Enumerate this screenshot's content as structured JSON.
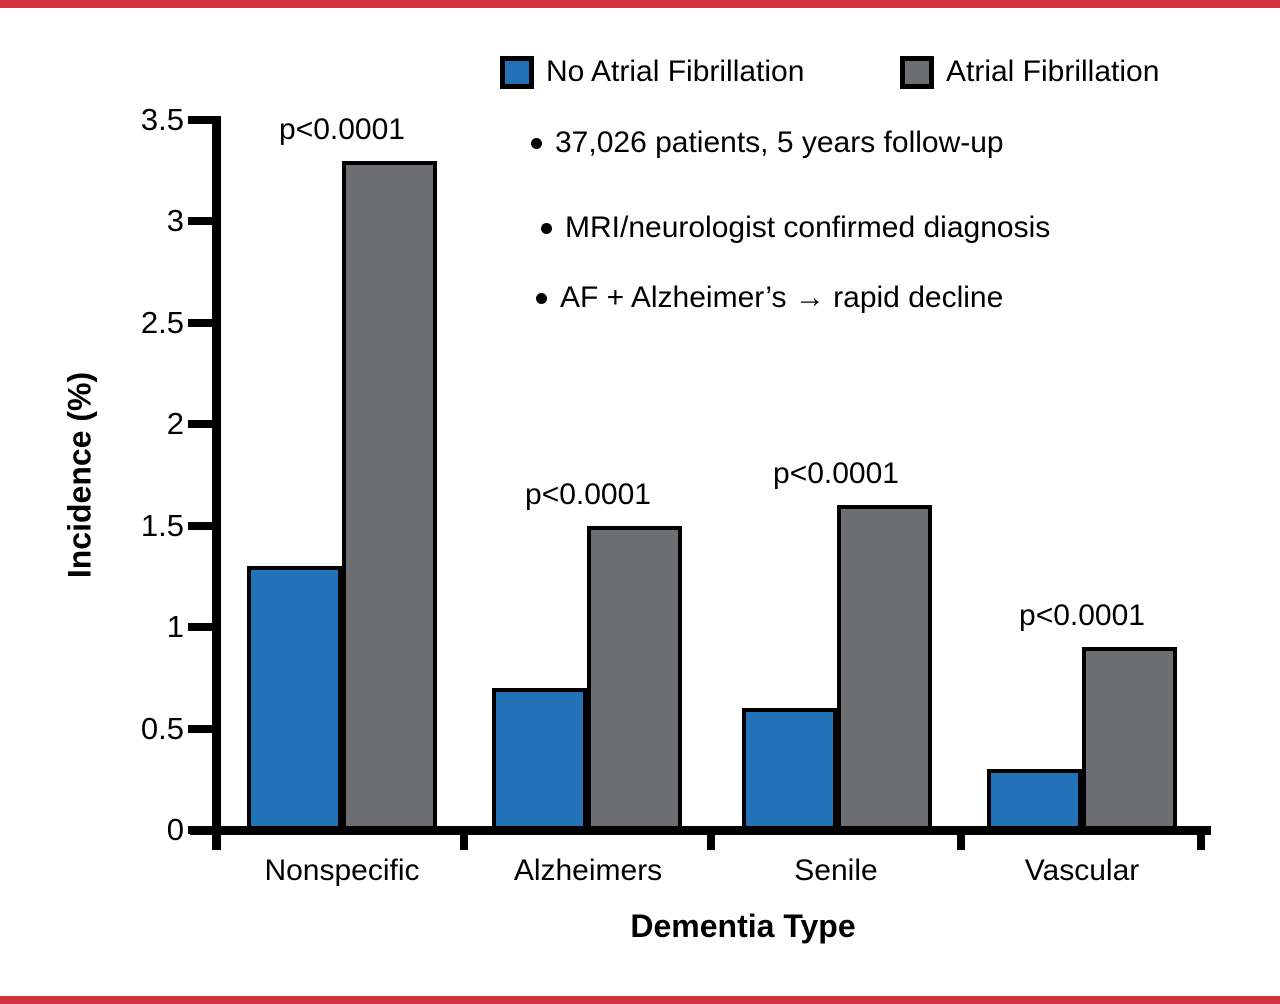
{
  "figure": {
    "accent_red": "#D2313D",
    "bullets": [
      "37,026 patients, 5 years follow-up",
      "MRI/neurologist confirmed diagnosis",
      "AF + Alzheimer’s → rapid decline"
    ]
  },
  "chart_data": {
    "type": "bar",
    "categories": [
      "Nonspecific",
      "Alzheimers",
      "Senile",
      "Vascular"
    ],
    "series": [
      {
        "name": "No Atrial Fibrillation",
        "color": "#2272B8",
        "values": [
          1.3,
          0.7,
          0.6,
          0.3
        ]
      },
      {
        "name": "Atrial Fibrillation",
        "color": "#6D6E72",
        "values": [
          3.3,
          1.5,
          1.6,
          0.9
        ]
      }
    ],
    "annotations": [
      "p<0.0001",
      "p<0.0001",
      "p<0.0001",
      "p<0.0001"
    ],
    "xlabel": "Dementia Type",
    "ylabel": "Incidence (%)",
    "ylim": [
      0,
      3.5
    ],
    "yticks": [
      0,
      0.5,
      1,
      1.5,
      2,
      2.5,
      3,
      3.5
    ],
    "grid": false,
    "legend_position": "top",
    "bar_outline_color": "#000000"
  }
}
